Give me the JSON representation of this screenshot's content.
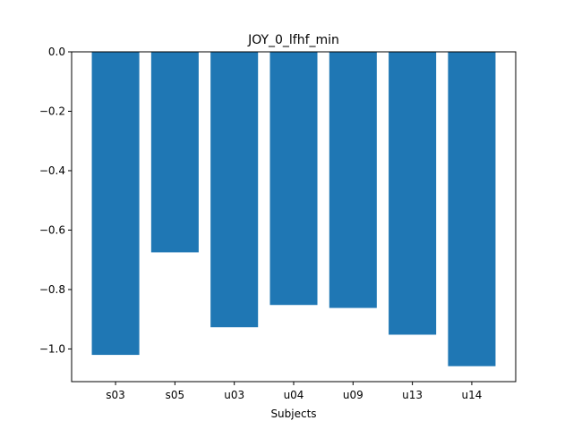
{
  "chart_data": {
    "type": "bar",
    "title": "JOY_0_lfhf_min",
    "xlabel": "Subjects",
    "ylabel": "",
    "categories": [
      "s03",
      "s05",
      "u03",
      "u04",
      "u09",
      "u13",
      "u14"
    ],
    "values": [
      -1.02,
      -0.675,
      -0.927,
      -0.852,
      -0.862,
      -0.952,
      -1.058
    ],
    "ylim": [
      -1.11,
      0.0
    ],
    "yticks": [
      0.0,
      -0.2,
      -0.4,
      -0.6,
      -0.8,
      -1.0
    ],
    "ytick_labels": [
      "0.0",
      "−0.2",
      "−0.4",
      "−0.6",
      "−0.8",
      "−1.0"
    ],
    "bar_color": "#1f77b4",
    "grid": false,
    "legend": "none"
  }
}
